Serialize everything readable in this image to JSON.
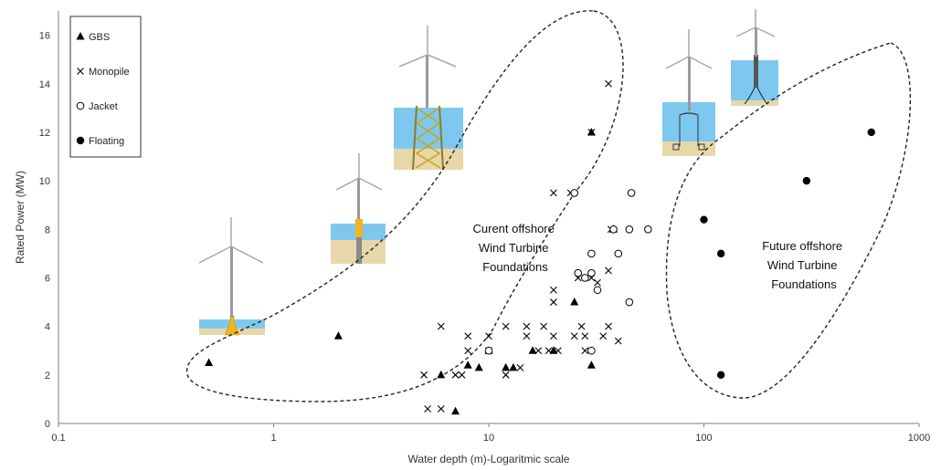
{
  "chart_data": {
    "type": "scatter",
    "x_scale": "log",
    "xlabel": "Water depth (m)-Logaritmic scale",
    "ylabel": "Rated Power (MW)",
    "xlim": [
      0.1,
      1000
    ],
    "ylim": [
      0,
      17
    ],
    "x_ticks": [
      "0.1",
      "1",
      "10",
      "100",
      "1000"
    ],
    "y_ticks": [
      "0",
      "2",
      "4",
      "6",
      "8",
      "10",
      "12",
      "14",
      "16"
    ],
    "legend_position": "top-left",
    "regions": [
      {
        "label_lines": [
          "Curent offshore",
          "Wind Turbine",
          "Foundations"
        ]
      },
      {
        "label_lines": [
          "Future offshore",
          "Wind Turbine",
          "Foundations"
        ]
      }
    ],
    "series": [
      {
        "name": "GBS",
        "marker": "triangle",
        "points": [
          [
            0.5,
            2.5
          ],
          [
            2,
            3.6
          ],
          [
            6,
            2
          ],
          [
            7,
            0.5
          ],
          [
            8,
            2.4
          ],
          [
            9,
            2.3
          ],
          [
            10,
            3
          ],
          [
            12,
            2.3
          ],
          [
            13,
            2.3
          ],
          [
            16,
            3
          ],
          [
            20,
            3
          ],
          [
            25,
            5
          ],
          [
            30,
            2.4
          ],
          [
            30,
            12
          ],
          [
            38,
            8
          ]
        ]
      },
      {
        "name": "Monopile",
        "marker": "x",
        "points": [
          [
            5,
            2
          ],
          [
            5.2,
            0.6
          ],
          [
            6,
            0.6
          ],
          [
            6,
            4
          ],
          [
            7,
            2
          ],
          [
            7.5,
            2
          ],
          [
            8,
            3.6
          ],
          [
            8,
            3
          ],
          [
            10,
            3.6
          ],
          [
            10,
            3
          ],
          [
            12,
            4
          ],
          [
            12,
            2
          ],
          [
            14,
            2.3
          ],
          [
            15,
            4
          ],
          [
            15,
            3.6
          ],
          [
            17,
            3
          ],
          [
            18,
            4
          ],
          [
            19,
            3
          ],
          [
            20,
            3.6
          ],
          [
            20,
            5
          ],
          [
            20,
            5.5
          ],
          [
            20,
            9.5
          ],
          [
            21,
            3
          ],
          [
            24,
            9.5
          ],
          [
            25,
            3.6
          ],
          [
            26,
            6
          ],
          [
            27,
            4
          ],
          [
            28,
            3
          ],
          [
            28,
            3.6
          ],
          [
            30,
            6
          ],
          [
            30,
            12
          ],
          [
            32,
            5.8
          ],
          [
            34,
            3.6
          ],
          [
            36,
            6.3
          ],
          [
            36,
            4
          ],
          [
            36,
            14
          ],
          [
            37,
            8
          ],
          [
            40,
            3.4
          ]
        ]
      },
      {
        "name": "Jacket",
        "marker": "circle-open",
        "points": [
          [
            10,
            3
          ],
          [
            25,
            9.5
          ],
          [
            26,
            6.2
          ],
          [
            28,
            6
          ],
          [
            30,
            3
          ],
          [
            30,
            7
          ],
          [
            32,
            5.5
          ],
          [
            30,
            6.2
          ],
          [
            38,
            8
          ],
          [
            40,
            7
          ],
          [
            45,
            8
          ],
          [
            45,
            5
          ],
          [
            46,
            9.5
          ],
          [
            55,
            8
          ]
        ]
      },
      {
        "name": "Floating",
        "marker": "circle-filled",
        "points": [
          [
            100,
            8.4
          ],
          [
            120,
            7
          ],
          [
            120,
            2
          ],
          [
            300,
            10
          ],
          [
            600,
            12
          ]
        ]
      }
    ]
  }
}
